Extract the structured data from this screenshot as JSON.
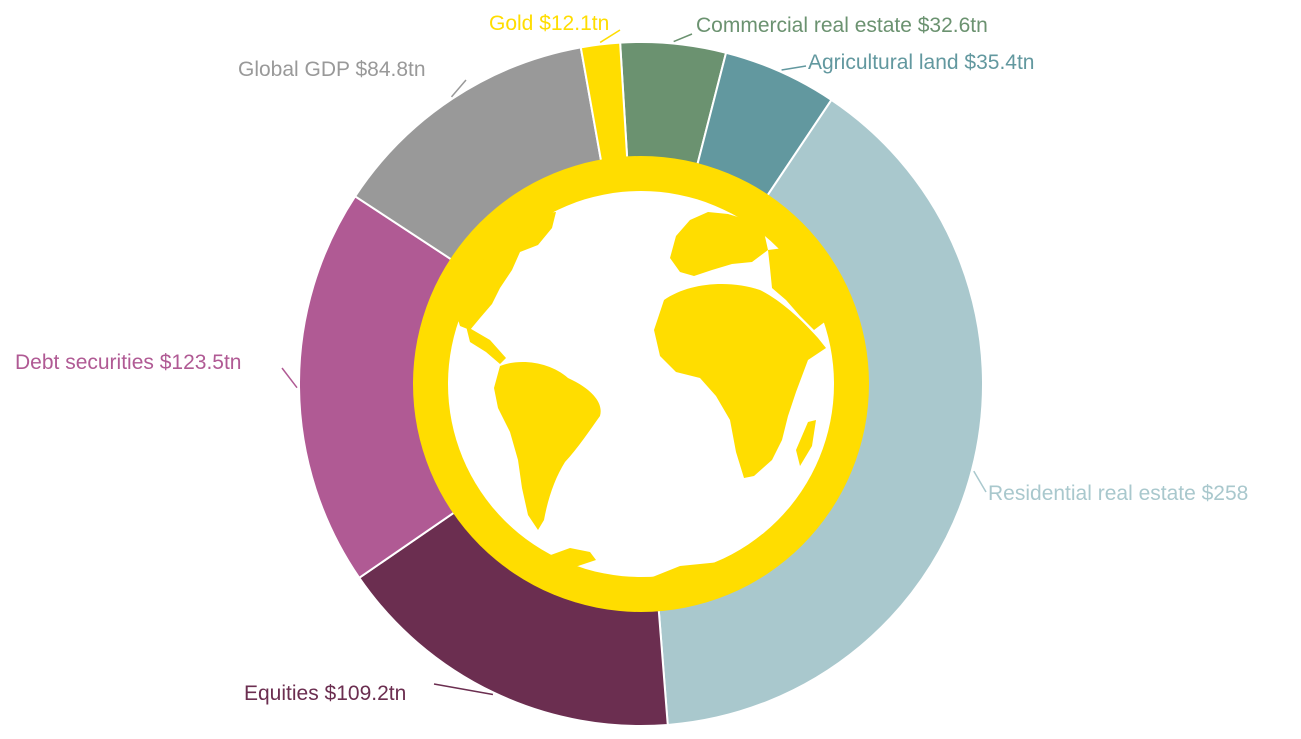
{
  "chart_data": {
    "type": "pie",
    "title": "",
    "slices": [
      {
        "label": "Commercial real estate $32.6tn",
        "name": "Commercial real estate",
        "value": 32.6,
        "color": "#6b9270"
      },
      {
        "label": "Agricultural land $35.4tn",
        "name": "Agricultural land",
        "value": 35.4,
        "color": "#62989f"
      },
      {
        "label": "Residential real estate $258",
        "name": "Residential real estate",
        "value": 258,
        "color": "#a9c8cd"
      },
      {
        "label": "Equities $109.2tn",
        "name": "Equities",
        "value": 109.2,
        "color": "#6b2e50"
      },
      {
        "label": "Debt securities $123.5tn",
        "name": "Debt securities",
        "value": 123.5,
        "color": "#b05a94"
      },
      {
        "label": "Global GDP $84.8tn",
        "name": "Global GDP",
        "value": 84.8,
        "color": "#999999"
      },
      {
        "label": "Gold $12.1tn",
        "name": "Gold",
        "value": 12.1,
        "color": "#ffdd00"
      }
    ],
    "center_icon": "globe-icon",
    "center_color": "#ffdd00"
  }
}
